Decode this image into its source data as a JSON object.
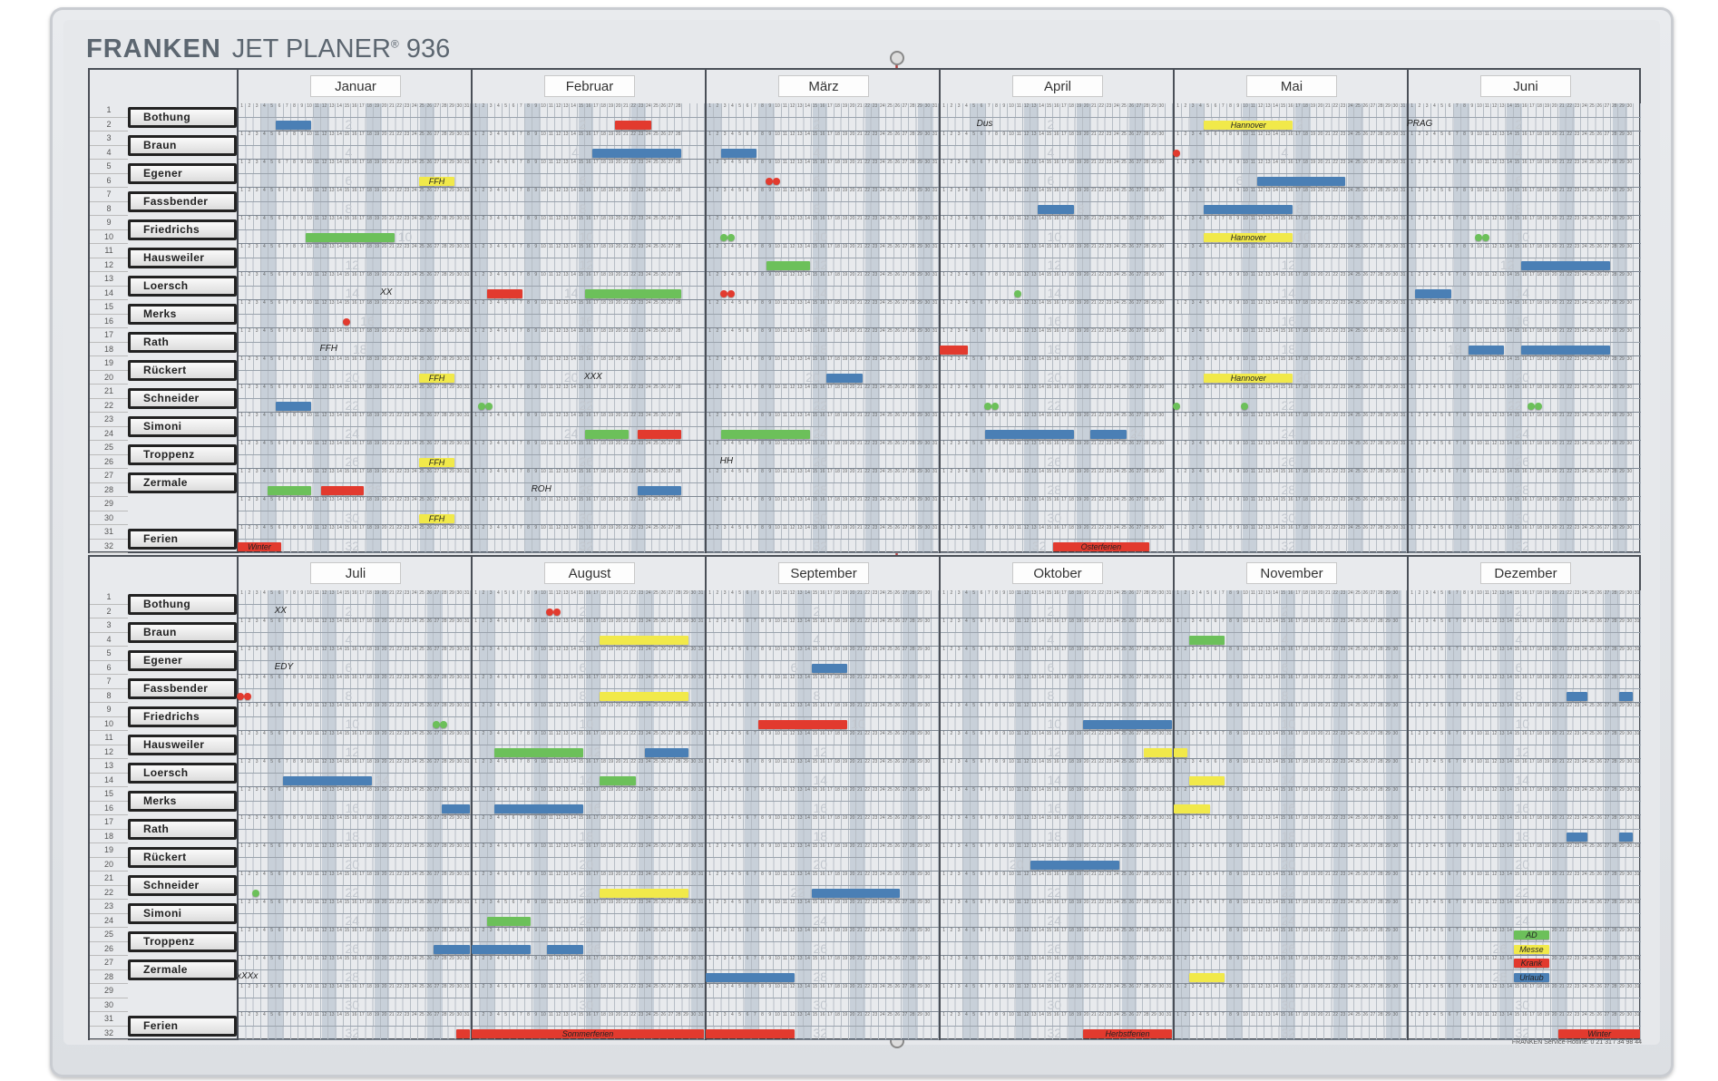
{
  "header": {
    "brand": "FRANKEN",
    "product": "JET PLANER",
    "reg": "®",
    "model": "936"
  },
  "months": [
    "Januar",
    "Februar",
    "März",
    "April",
    "Mai",
    "Juni",
    "Juli",
    "August",
    "September",
    "Oktober",
    "November",
    "Dezember"
  ],
  "row_count": 32,
  "names": [
    {
      "row": 1,
      "label": "Bothung"
    },
    {
      "row": 3,
      "label": "Braun"
    },
    {
      "row": 5,
      "label": "Egener"
    },
    {
      "row": 7,
      "label": "Fassbender"
    },
    {
      "row": 9,
      "label": "Friedrichs"
    },
    {
      "row": 11,
      "label": "Hausweiler"
    },
    {
      "row": 13,
      "label": "Loersch"
    },
    {
      "row": 15,
      "label": "Merks"
    },
    {
      "row": 17,
      "label": "Rath"
    },
    {
      "row": 19,
      "label": "Rückert"
    },
    {
      "row": 21,
      "label": "Schneider"
    },
    {
      "row": 23,
      "label": "Simoni"
    },
    {
      "row": 25,
      "label": "Troppenz"
    },
    {
      "row": 27,
      "label": "Zermale"
    },
    {
      "row": 31,
      "label": "Ferien"
    }
  ],
  "colors": {
    "blue": "#4a7fb5",
    "red": "#e23a2e",
    "green": "#6cc05a",
    "yellow": "#f1e94a"
  },
  "events": [
    [
      0,
      2,
      6,
      10,
      "blue",
      ""
    ],
    [
      0,
      6,
      25,
      29,
      "yellow",
      "FFH"
    ],
    [
      0,
      10,
      10,
      21,
      "green",
      ""
    ],
    [
      0,
      20,
      25,
      29,
      "yellow",
      "FFH"
    ],
    [
      0,
      22,
      6,
      10,
      "blue",
      ""
    ],
    [
      0,
      26,
      25,
      29,
      "yellow",
      "FFH"
    ],
    [
      0,
      28,
      5,
      10,
      "green",
      ""
    ],
    [
      0,
      28,
      12,
      17,
      "red",
      ""
    ],
    [
      0,
      30,
      25,
      29,
      "yellow",
      "FFH"
    ],
    [
      0,
      32,
      1,
      6,
      "red",
      "Winter"
    ],
    [
      1,
      2,
      20,
      24,
      "red",
      ""
    ],
    [
      1,
      4,
      17,
      28,
      "blue",
      ""
    ],
    [
      1,
      14,
      3,
      7,
      "red",
      ""
    ],
    [
      1,
      14,
      16,
      28,
      "green",
      ""
    ],
    [
      1,
      24,
      16,
      21,
      "green",
      ""
    ],
    [
      1,
      24,
      23,
      28,
      "red",
      ""
    ],
    [
      1,
      28,
      23,
      28,
      "blue",
      ""
    ],
    [
      2,
      4,
      3,
      7,
      "blue",
      ""
    ],
    [
      2,
      12,
      9,
      14,
      "green",
      ""
    ],
    [
      2,
      20,
      17,
      21,
      "blue",
      ""
    ],
    [
      2,
      24,
      3,
      14,
      "green",
      ""
    ],
    [
      3,
      18,
      1,
      4,
      "red",
      ""
    ],
    [
      3,
      8,
      14,
      18,
      "blue",
      ""
    ],
    [
      3,
      24,
      7,
      18,
      "blue",
      ""
    ],
    [
      3,
      24,
      21,
      25,
      "blue",
      ""
    ],
    [
      3,
      32,
      16,
      28,
      "red",
      "Osterferien"
    ],
    [
      4,
      2,
      5,
      16,
      "yellow",
      "Hannover"
    ],
    [
      4,
      6,
      12,
      23,
      "blue",
      ""
    ],
    [
      4,
      8,
      5,
      16,
      "blue",
      ""
    ],
    [
      4,
      10,
      5,
      16,
      "yellow",
      "Hannover"
    ],
    [
      4,
      20,
      5,
      16,
      "yellow",
      "Hannover"
    ],
    [
      5,
      12,
      16,
      27,
      "blue",
      ""
    ],
    [
      5,
      14,
      2,
      6,
      "blue",
      ""
    ],
    [
      5,
      18,
      9,
      13,
      "blue",
      ""
    ],
    [
      5,
      18,
      16,
      27,
      "blue",
      ""
    ],
    [
      6,
      14,
      7,
      18,
      "blue",
      ""
    ],
    [
      6,
      16,
      28,
      31,
      "blue",
      ""
    ],
    [
      6,
      26,
      27,
      31,
      "blue",
      ""
    ],
    [
      6,
      32,
      30,
      31,
      "red",
      ""
    ],
    [
      7,
      4,
      18,
      29,
      "yellow",
      ""
    ],
    [
      7,
      8,
      18,
      29,
      "yellow",
      ""
    ],
    [
      7,
      12,
      4,
      15,
      "green",
      ""
    ],
    [
      7,
      12,
      24,
      29,
      "blue",
      ""
    ],
    [
      7,
      14,
      18,
      22,
      "green",
      ""
    ],
    [
      7,
      16,
      4,
      15,
      "blue",
      ""
    ],
    [
      7,
      22,
      18,
      29,
      "yellow",
      ""
    ],
    [
      7,
      24,
      3,
      8,
      "green",
      ""
    ],
    [
      7,
      26,
      1,
      8,
      "blue",
      ""
    ],
    [
      7,
      26,
      11,
      15,
      "blue",
      ""
    ],
    [
      7,
      32,
      1,
      31,
      "red",
      "Sommerferien"
    ],
    [
      8,
      6,
      15,
      19,
      "blue",
      ""
    ],
    [
      8,
      10,
      8,
      19,
      "red",
      ""
    ],
    [
      8,
      22,
      15,
      26,
      "blue",
      ""
    ],
    [
      8,
      28,
      1,
      12,
      "blue",
      ""
    ],
    [
      8,
      32,
      1,
      12,
      "red",
      ""
    ],
    [
      9,
      10,
      20,
      31,
      "blue",
      ""
    ],
    [
      9,
      12,
      28,
      31,
      "yellow",
      ""
    ],
    [
      9,
      20,
      13,
      24,
      "blue",
      ""
    ],
    [
      9,
      32,
      20,
      31,
      "red",
      "Herbstferien"
    ],
    [
      10,
      12,
      1,
      2,
      "yellow",
      ""
    ],
    [
      10,
      4,
      3,
      7,
      "green",
      ""
    ],
    [
      10,
      14,
      3,
      7,
      "yellow",
      ""
    ],
    [
      10,
      16,
      1,
      5,
      "yellow",
      ""
    ],
    [
      10,
      28,
      3,
      7,
      "yellow",
      ""
    ],
    [
      11,
      8,
      22,
      24,
      "blue",
      ""
    ],
    [
      11,
      8,
      29,
      30,
      "blue",
      ""
    ],
    [
      11,
      18,
      22,
      24,
      "blue",
      ""
    ],
    [
      11,
      18,
      29,
      30,
      "blue",
      ""
    ],
    [
      11,
      32,
      21,
      31,
      "red",
      "Winter"
    ],
    [
      11,
      25,
      15,
      19,
      "green",
      "AD"
    ],
    [
      11,
      26,
      15,
      19,
      "yellow",
      "Messe"
    ],
    [
      11,
      27,
      15,
      19,
      "red",
      "Krank"
    ],
    [
      11,
      28,
      15,
      19,
      "blue",
      "Urlaub"
    ]
  ],
  "dots": [
    [
      0,
      16,
      15,
      "red",
      1
    ],
    [
      1,
      22,
      2,
      "green",
      2
    ],
    [
      2,
      6,
      9,
      "red",
      2
    ],
    [
      2,
      10,
      3,
      "green",
      2
    ],
    [
      2,
      14,
      3,
      "red",
      2
    ],
    [
      3,
      14,
      11,
      "green",
      1
    ],
    [
      3,
      22,
      7,
      "green",
      2
    ],
    [
      4,
      4,
      1,
      "red",
      1
    ],
    [
      4,
      22,
      1,
      "green",
      1
    ],
    [
      4,
      22,
      10,
      "green",
      1
    ],
    [
      5,
      10,
      10,
      "green",
      2
    ],
    [
      5,
      22,
      17,
      "green",
      2
    ],
    [
      6,
      8,
      1,
      "red",
      2
    ],
    [
      6,
      10,
      27,
      "green",
      2
    ],
    [
      6,
      22,
      3,
      "green",
      1
    ],
    [
      7,
      2,
      11,
      "red",
      2
    ]
  ],
  "notes": [
    [
      0,
      14,
      20,
      "XX"
    ],
    [
      0,
      18,
      12,
      "FFH"
    ],
    [
      1,
      20,
      16,
      "XXX"
    ],
    [
      1,
      28,
      9,
      "ROH"
    ],
    [
      2,
      26,
      3,
      "HH"
    ],
    [
      3,
      2,
      6,
      "Dus"
    ],
    [
      5,
      2,
      1,
      "PRAG"
    ],
    [
      6,
      2,
      6,
      "XX"
    ],
    [
      6,
      6,
      6,
      "EDY"
    ],
    [
      6,
      28,
      1,
      "xXXx"
    ]
  ],
  "footer": {
    "hotline": "FRANKEN Service-Hotline: 0 21 31 / 34 98 44"
  }
}
